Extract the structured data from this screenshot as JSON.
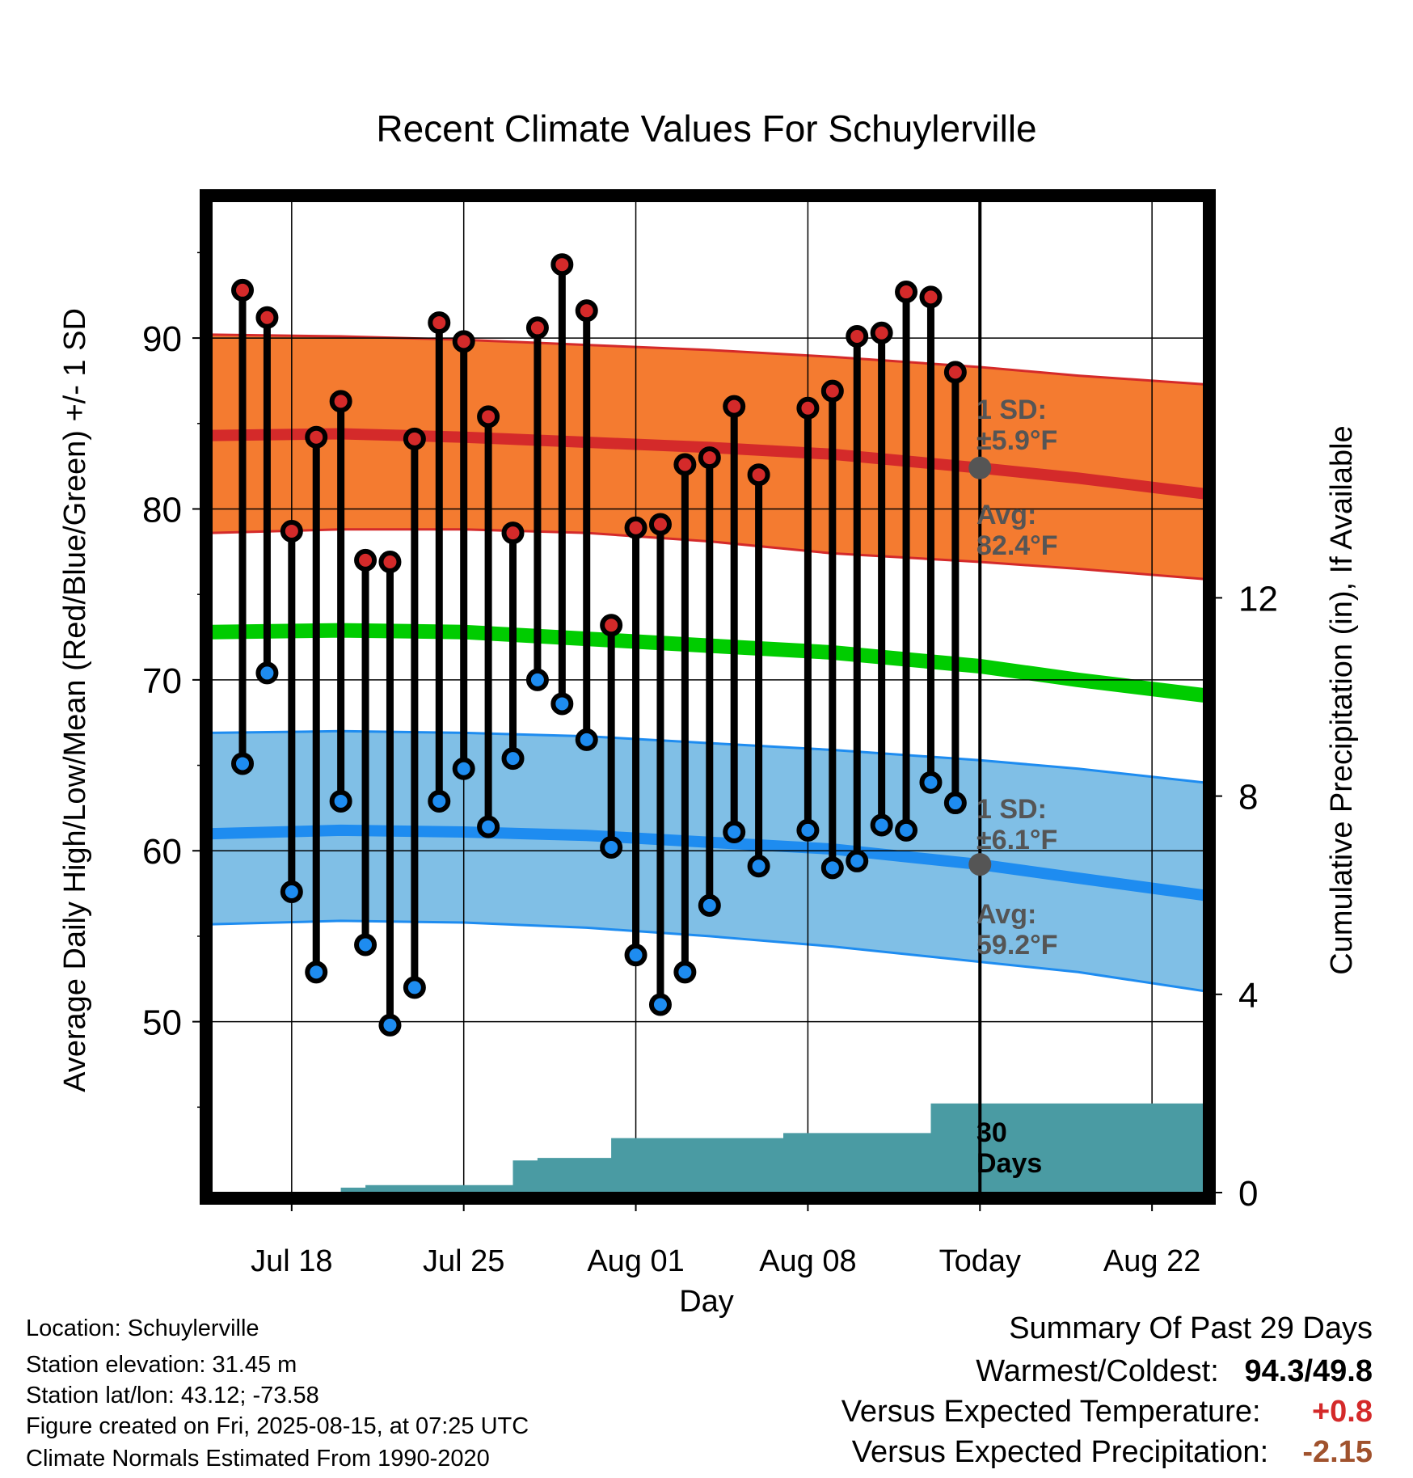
{
  "chart_data": {
    "type": "line",
    "title": "Recent Climate Values For Schuylerville",
    "xlabel": "Day",
    "ylabel": "Average Daily High/Low/Mean (Red/Blue/Green) +/- 1 SD",
    "y2label": "Cumulative Precipitation (in), If Available",
    "ylim": [
      40,
      98
    ],
    "y2lim": [
      0,
      20
    ],
    "yticks": [
      50,
      60,
      70,
      80,
      90
    ],
    "y2ticks": [
      0,
      4,
      8,
      12
    ],
    "xticks": [
      "Jul 18",
      "Jul 25",
      "Aug 01",
      "Aug 08",
      "Today",
      "Aug 22"
    ],
    "xtick_days": [
      18,
      25,
      32,
      39,
      46,
      53
    ],
    "xlim_days": [
      14.75,
      55.1
    ],
    "today_day": 46,
    "grid": true,
    "colors": {
      "high_band": "#f47b30",
      "high_line": "#d42a2a",
      "low_band": "#80bfe6",
      "low_line": "#1e8cf0",
      "mean_line": "#00cc00",
      "precip": "#4a9ba3",
      "high_marker": "#d42a2a",
      "low_marker": "#1e8cf0",
      "annotation": "#555555"
    },
    "days": [
      16,
      17,
      18,
      19,
      20,
      21,
      22,
      23,
      24,
      25,
      26,
      27,
      28,
      29,
      30,
      31,
      32,
      33,
      34,
      35,
      36,
      37,
      39,
      40,
      41,
      42,
      43,
      44,
      45
    ],
    "highs": [
      92.8,
      91.2,
      78.7,
      84.2,
      86.3,
      77.0,
      76.9,
      84.1,
      90.9,
      89.8,
      85.4,
      78.6,
      90.6,
      94.3,
      91.6,
      73.2,
      78.9,
      79.1,
      82.6,
      83.0,
      86.0,
      82.0,
      85.9,
      86.9,
      90.1,
      90.3,
      92.7,
      92.4,
      88.0
    ],
    "lows": [
      65.1,
      70.4,
      57.6,
      52.9,
      62.9,
      54.5,
      49.8,
      52.0,
      62.9,
      64.8,
      61.4,
      65.4,
      70.0,
      68.6,
      66.5,
      60.2,
      53.9,
      51.0,
      52.9,
      56.8,
      61.1,
      59.1,
      61.2,
      59.0,
      59.4,
      61.5,
      61.2,
      64.0,
      62.8
    ],
    "normal_high": {
      "days": [
        14.75,
        20,
        25,
        30,
        35,
        40,
        46,
        50,
        55.1
      ],
      "avg": [
        84.3,
        84.4,
        84.2,
        83.9,
        83.6,
        83.2,
        82.4,
        81.8,
        80.9
      ],
      "upper": [
        90.2,
        90.1,
        89.9,
        89.6,
        89.3,
        88.9,
        88.3,
        87.8,
        87.3
      ],
      "lower": [
        78.6,
        78.8,
        78.8,
        78.6,
        78.1,
        77.4,
        76.9,
        76.5,
        75.9
      ]
    },
    "normal_low": {
      "days": [
        14.75,
        20,
        25,
        30,
        35,
        40,
        46,
        50,
        55.1
      ],
      "avg": [
        61.0,
        61.2,
        61.1,
        60.9,
        60.5,
        60.1,
        59.2,
        58.4,
        57.4
      ],
      "upper": [
        66.9,
        67.0,
        66.9,
        66.7,
        66.3,
        65.9,
        65.3,
        64.8,
        64.0
      ],
      "lower": [
        55.7,
        55.9,
        55.8,
        55.5,
        55.0,
        54.4,
        53.5,
        52.9,
        51.8
      ]
    },
    "normal_mean": {
      "days": [
        14.75,
        20,
        25,
        30,
        35,
        40,
        46,
        50,
        55.1
      ],
      "values": [
        72.8,
        72.9,
        72.8,
        72.4,
        72.0,
        71.6,
        70.8,
        70.0,
        69.1
      ]
    },
    "precip_cum": {
      "days": [
        14.75,
        16,
        17,
        18,
        19,
        20,
        21,
        22,
        23,
        24,
        25,
        26,
        27,
        28,
        29,
        30,
        31,
        32,
        33,
        34,
        35,
        36,
        37,
        38,
        39,
        40,
        41,
        42,
        43,
        44,
        45,
        46,
        55.1
      ],
      "values": [
        0,
        0,
        0,
        0,
        0,
        0.1,
        0.15,
        0.15,
        0.15,
        0.15,
        0.15,
        0.15,
        0.65,
        0.7,
        0.7,
        0.7,
        1.1,
        1.1,
        1.1,
        1.1,
        1.1,
        1.1,
        1.1,
        1.2,
        1.2,
        1.2,
        1.2,
        1.2,
        1.2,
        1.8,
        1.8,
        1.8,
        1.8
      ]
    },
    "annotations": {
      "high_sd": [
        "1 SD:",
        "±5.9°F"
      ],
      "high_avg": [
        "Avg:",
        "82.4°F"
      ],
      "low_sd": [
        "1 SD:",
        "±6.1°F"
      ],
      "low_avg": [
        "Avg:",
        "59.2°F"
      ],
      "precip_days": [
        "30",
        "Days"
      ]
    },
    "today_markers": {
      "high_avg": 82.4,
      "low_avg": 59.2
    }
  },
  "info": {
    "location": "Location: Schuylerville",
    "elevation": "Station elevation: 31.45 m",
    "latlon": "Station lat/lon: 43.12; -73.58",
    "created": "Figure created on Fri, 2025-08-15, at 07:25 UTC",
    "normals": "Climate Normals Estimated From 1990-2020"
  },
  "summary": {
    "heading": "Summary Of Past 29 Days",
    "warmest_label": "Warmest/Coldest:",
    "warmest_high": "94.3",
    "warmest_sep": "/",
    "warmest_low": "49.8",
    "temp_label": "Versus Expected Temperature:",
    "temp_value": "+0.8",
    "temp_color": "#d42a2a",
    "precip_label": "Versus Expected Precipitation:",
    "precip_value": "-2.15",
    "precip_color": "#a0522d"
  }
}
